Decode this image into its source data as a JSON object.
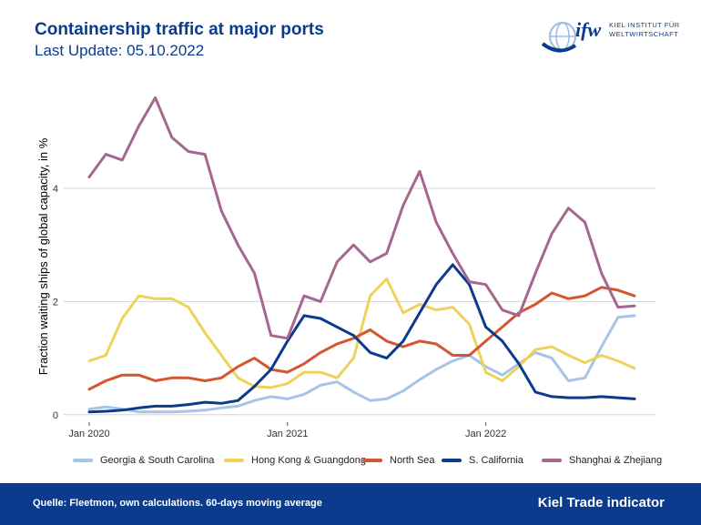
{
  "header": {
    "title": "Containership traffic at major ports",
    "subtitle": "Last Update: 05.10.2022"
  },
  "logo": {
    "brand": "ifw",
    "line1": "KIEL INSTITUT FÜR",
    "line2": "WELTWIRTSCHAFT",
    "icon": "globe-icon",
    "colors": {
      "navy": "#0b3b8c",
      "light": "#9dbce3"
    }
  },
  "footer": {
    "source": "Quelle: Fleetmon, own calculations. 60-days moving average",
    "brand": "Kiel Trade indicator",
    "background": "#0b3b8c"
  },
  "chart_data": {
    "type": "line",
    "title": "",
    "xlabel": "",
    "ylabel": "Fraction waiting ships of global capacity, in %",
    "x_ticks": [
      "Jan 2020",
      "Jan 2021",
      "Jan 2022"
    ],
    "x_range": [
      "2020-01",
      "2022-10"
    ],
    "y_ticks": [
      0,
      2,
      4
    ],
    "ylim": [
      -0.1,
      5.8
    ],
    "grid": "horizontal major",
    "legend_position": "bottom",
    "x": [
      "2020-01",
      "2020-02",
      "2020-03",
      "2020-04",
      "2020-05",
      "2020-06",
      "2020-07",
      "2020-08",
      "2020-09",
      "2020-10",
      "2020-11",
      "2020-12",
      "2021-01",
      "2021-02",
      "2021-03",
      "2021-04",
      "2021-05",
      "2021-06",
      "2021-07",
      "2021-08",
      "2021-09",
      "2021-10",
      "2021-11",
      "2021-12",
      "2022-01",
      "2022-02",
      "2022-03",
      "2022-04",
      "2022-05",
      "2022-06",
      "2022-07",
      "2022-08",
      "2022-09",
      "2022-10"
    ],
    "series": [
      {
        "name": "Georgia & South Carolina",
        "color": "#a7c4e6",
        "values": [
          0.1,
          0.14,
          0.1,
          0.05,
          0.05,
          0.05,
          0.06,
          0.08,
          0.12,
          0.15,
          0.25,
          0.32,
          0.28,
          0.36,
          0.52,
          0.58,
          0.4,
          0.25,
          0.28,
          0.42,
          0.62,
          0.8,
          0.95,
          1.05,
          0.85,
          0.7,
          0.9,
          1.1,
          1.0,
          0.6,
          0.65,
          1.2,
          1.72,
          1.75
        ]
      },
      {
        "name": "Hong Kong & Guangdong",
        "color": "#eed25a",
        "values": [
          0.95,
          1.05,
          1.7,
          2.1,
          2.05,
          2.05,
          1.9,
          1.45,
          1.05,
          0.65,
          0.5,
          0.48,
          0.55,
          0.75,
          0.75,
          0.65,
          1.0,
          2.1,
          2.4,
          1.8,
          1.95,
          1.85,
          1.9,
          1.6,
          0.75,
          0.6,
          0.85,
          1.15,
          1.2,
          1.05,
          0.92,
          1.05,
          0.95,
          0.82
        ]
      },
      {
        "name": "North Sea",
        "color": "#d4552f",
        "values": [
          0.45,
          0.6,
          0.7,
          0.7,
          0.6,
          0.65,
          0.65,
          0.6,
          0.65,
          0.85,
          1.0,
          0.8,
          0.75,
          0.9,
          1.1,
          1.25,
          1.35,
          1.5,
          1.3,
          1.2,
          1.3,
          1.25,
          1.05,
          1.05,
          1.3,
          1.55,
          1.8,
          1.95,
          2.15,
          2.05,
          2.1,
          2.25,
          2.2,
          2.1
        ]
      },
      {
        "name": "S. California",
        "color": "#0b3b8c",
        "values": [
          0.05,
          0.06,
          0.08,
          0.12,
          0.15,
          0.15,
          0.18,
          0.22,
          0.2,
          0.25,
          0.5,
          0.8,
          1.3,
          1.75,
          1.7,
          1.55,
          1.4,
          1.1,
          1.0,
          1.3,
          1.8,
          2.3,
          2.65,
          2.3,
          1.55,
          1.3,
          0.9,
          0.4,
          0.32,
          0.3,
          0.3,
          0.32,
          0.3,
          0.28
        ]
      },
      {
        "name": "Shanghai & Zhejiang",
        "color": "#a5668f",
        "values": [
          4.2,
          4.6,
          4.5,
          5.1,
          5.6,
          4.9,
          4.65,
          4.6,
          3.6,
          3.0,
          2.5,
          1.4,
          1.35,
          2.1,
          2.0,
          2.7,
          3.0,
          2.7,
          2.85,
          3.7,
          4.3,
          3.4,
          2.85,
          2.35,
          2.3,
          1.85,
          1.75,
          2.5,
          3.2,
          3.65,
          3.4,
          2.5,
          1.9,
          1.92
        ]
      }
    ]
  }
}
